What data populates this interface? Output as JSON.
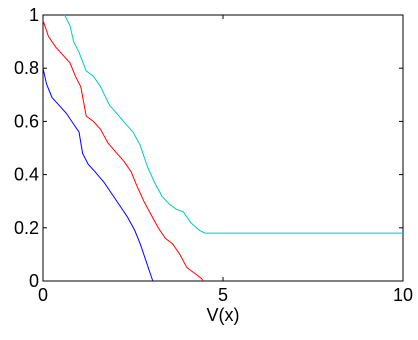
{
  "chart_data": {
    "type": "line",
    "title": "",
    "xlabel": "V(x)",
    "ylabel": "",
    "xlim": [
      0,
      10
    ],
    "ylim": [
      0,
      1
    ],
    "grid": false,
    "legend": "none",
    "x_ticks": [
      0,
      5,
      10
    ],
    "x_tick_labels": [
      "0",
      "5",
      "10"
    ],
    "y_ticks": [
      0,
      0.2,
      0.4,
      0.6,
      0.8,
      1
    ],
    "y_tick_labels": [
      "0",
      "0.2",
      "0.4",
      "0.6",
      "0.8",
      "1"
    ],
    "series": [
      {
        "color": "#00c8c8",
        "points": [
          [
            0.6,
            1.0
          ],
          [
            0.75,
            0.96
          ],
          [
            0.85,
            0.9
          ],
          [
            1.0,
            0.86
          ],
          [
            1.2,
            0.79
          ],
          [
            1.4,
            0.77
          ],
          [
            1.6,
            0.73
          ],
          [
            1.85,
            0.66
          ],
          [
            2.05,
            0.63
          ],
          [
            2.3,
            0.59
          ],
          [
            2.5,
            0.56
          ],
          [
            2.7,
            0.51
          ],
          [
            2.9,
            0.43
          ],
          [
            3.1,
            0.37
          ],
          [
            3.3,
            0.32
          ],
          [
            3.5,
            0.29
          ],
          [
            3.7,
            0.27
          ],
          [
            3.9,
            0.26
          ],
          [
            4.1,
            0.22
          ],
          [
            4.35,
            0.19
          ],
          [
            4.5,
            0.18
          ],
          [
            6.0,
            0.18
          ],
          [
            8.0,
            0.18
          ],
          [
            10.0,
            0.18
          ]
        ]
      },
      {
        "color": "#ff0000",
        "points": [
          [
            0.0,
            0.98
          ],
          [
            0.15,
            0.92
          ],
          [
            0.35,
            0.88
          ],
          [
            0.55,
            0.85
          ],
          [
            0.75,
            0.82
          ],
          [
            0.9,
            0.77
          ],
          [
            1.05,
            0.73
          ],
          [
            1.2,
            0.62
          ],
          [
            1.4,
            0.6
          ],
          [
            1.6,
            0.57
          ],
          [
            1.8,
            0.52
          ],
          [
            2.05,
            0.48
          ],
          [
            2.25,
            0.45
          ],
          [
            2.45,
            0.41
          ],
          [
            2.6,
            0.36
          ],
          [
            2.8,
            0.3
          ],
          [
            3.0,
            0.25
          ],
          [
            3.2,
            0.2
          ],
          [
            3.4,
            0.16
          ],
          [
            3.6,
            0.14
          ],
          [
            3.8,
            0.1
          ],
          [
            4.0,
            0.05
          ],
          [
            4.2,
            0.03
          ],
          [
            4.4,
            0.01
          ],
          [
            4.45,
            0.0
          ]
        ]
      },
      {
        "color": "#0000ff",
        "points": [
          [
            0.0,
            0.8
          ],
          [
            0.1,
            0.74
          ],
          [
            0.25,
            0.69
          ],
          [
            0.45,
            0.66
          ],
          [
            0.65,
            0.63
          ],
          [
            0.85,
            0.59
          ],
          [
            1.0,
            0.56
          ],
          [
            1.1,
            0.48
          ],
          [
            1.25,
            0.44
          ],
          [
            1.45,
            0.41
          ],
          [
            1.7,
            0.37
          ],
          [
            1.95,
            0.32
          ],
          [
            2.15,
            0.28
          ],
          [
            2.35,
            0.24
          ],
          [
            2.55,
            0.19
          ],
          [
            2.7,
            0.14
          ],
          [
            2.85,
            0.08
          ],
          [
            2.95,
            0.04
          ],
          [
            3.05,
            0.0
          ]
        ]
      }
    ]
  }
}
